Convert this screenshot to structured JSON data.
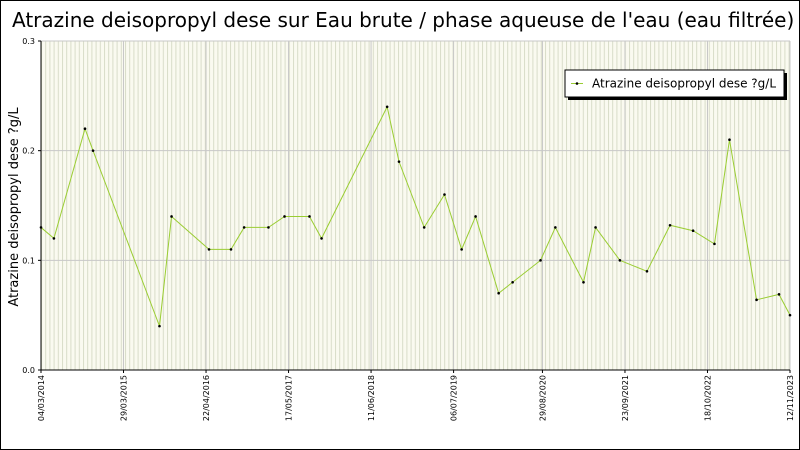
{
  "chart_data": {
    "type": "line",
    "title": "Atrazine deisopropyl dese sur Eau brute / phase aqueuse de l'eau (eau filtrée)",
    "y_label": "Atrazine deisopropyl dese ?g/L",
    "x": [
      "04/03/2014",
      "04/05/2014",
      "28/09/2014",
      "05/11/2014",
      "15/09/2015",
      "11/11/2015",
      "06/05/2016",
      "18/08/2016",
      "19/10/2016",
      "11/02/2017",
      "28/04/2017",
      "24/08/2017",
      "20/10/2017",
      "26/08/2018",
      "21/10/2018",
      "17/02/2019",
      "24/05/2019",
      "13/08/2019",
      "18/10/2019",
      "04/02/2020",
      "10/04/2020",
      "20/08/2020",
      "29/10/2020",
      "11/03/2021",
      "07/05/2021",
      "30/08/2021",
      "05/01/2022",
      "24/04/2022",
      "11/08/2022",
      "20/11/2022",
      "30/01/2023",
      "07/06/2023",
      "21/09/2023",
      "12/11/2023"
    ],
    "series": [
      {
        "name": "Atrazine deisopropyl dese ?g/L",
        "color": "#9acd32",
        "marker_color": "#000000",
        "values": [
          0.13,
          0.12,
          0.22,
          0.2,
          0.04,
          0.14,
          0.11,
          0.11,
          0.13,
          0.13,
          0.14,
          0.14,
          0.12,
          0.24,
          0.19,
          0.13,
          0.16,
          0.11,
          0.14,
          0.07,
          0.08,
          0.1,
          0.13,
          0.08,
          0.13,
          0.1,
          0.09,
          0.132,
          0.127,
          0.115,
          0.21,
          0.064,
          0.069,
          0.05
        ]
      }
    ],
    "xlim": [
      "04/03/2014",
      "12/11/2023"
    ],
    "xticks": [
      "04/03/2014",
      "29/03/2015",
      "22/04/2016",
      "17/05/2017",
      "11/06/2018",
      "06/07/2019",
      "29/08/2020",
      "23/09/2021",
      "18/10/2022",
      "12/11/2023"
    ],
    "ylim": [
      0,
      0.3
    ],
    "yticks": [
      {
        "value": 0,
        "label": "0.0"
      },
      0.1,
      0.2,
      0.3
    ],
    "grid": true,
    "legend": "top-right"
  }
}
